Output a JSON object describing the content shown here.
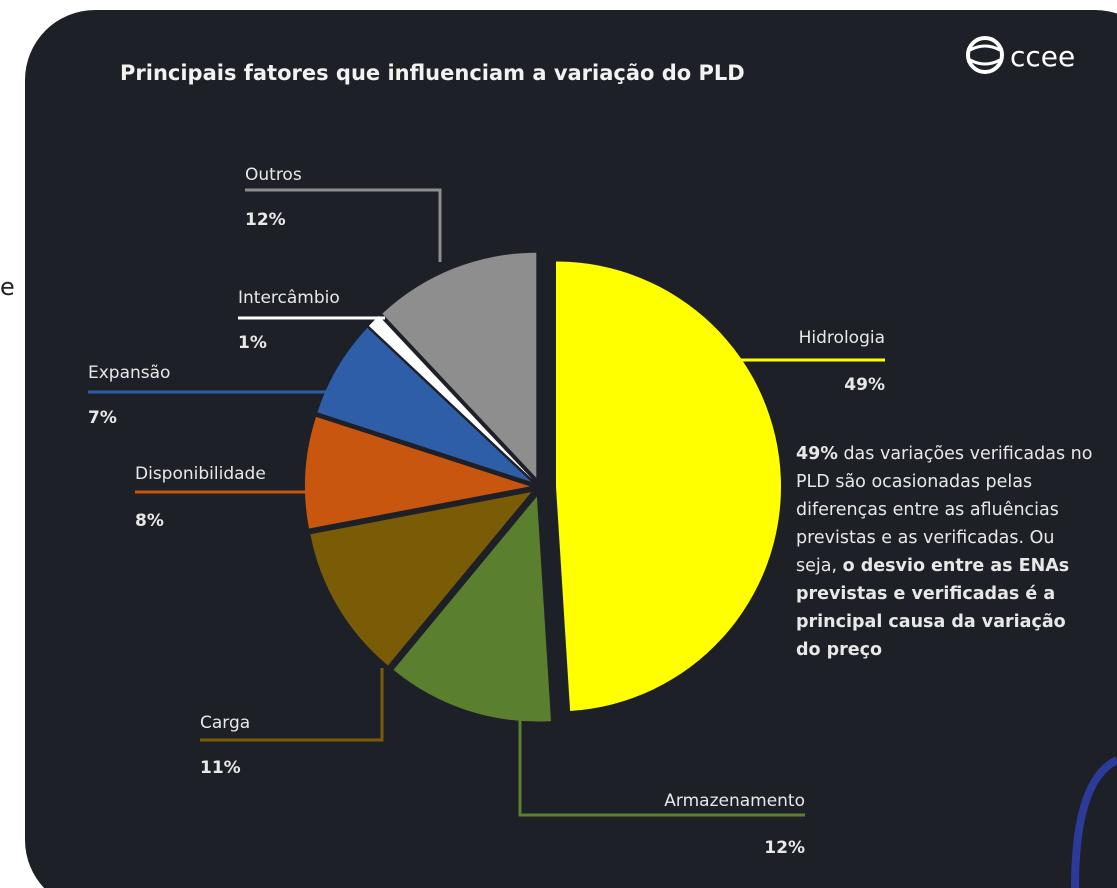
{
  "chart_data": {
    "type": "pie",
    "title": "Principais fatores que influenciam a variação do PLD",
    "logo": "ccee",
    "edge_text": "e",
    "categories": [
      "Hidrologia",
      "Armazenamento",
      "Carga",
      "Disponibilidade",
      "Expansão",
      "Intercâmbio",
      "Outros"
    ],
    "values": [
      49,
      12,
      11,
      8,
      7,
      1,
      12
    ],
    "value_labels": [
      "49%",
      "12%",
      "11%",
      "8%",
      "7%",
      "1%",
      "12%"
    ],
    "colors": [
      "#ffff00",
      "#5a7f2e",
      "#7a5c06",
      "#c8560f",
      "#2e5ea8",
      "#ffffff",
      "#8e8e8e"
    ],
    "annotation": [
      {
        "text": "49%",
        "bold": true
      },
      {
        "text": " das variações verificadas no PLD são ocasionadas pelas diferenças entre as afluências previstas e as verificadas. Ou seja, ",
        "bold": false
      },
      {
        "text": "o desvio entre as ENAs previstas e verificadas é a principal causa da variação do preço",
        "bold": true
      }
    ]
  }
}
